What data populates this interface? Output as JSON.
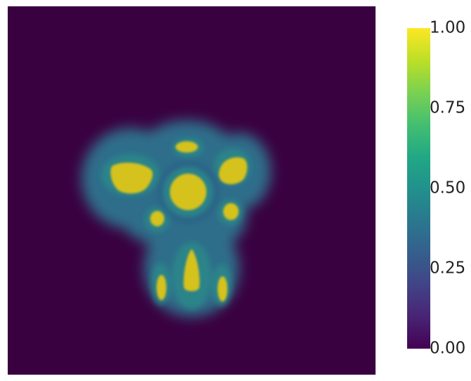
{
  "chart_data": {
    "type": "heatmap",
    "title": "",
    "xlabel": "",
    "ylabel": "",
    "colormap": "viridis",
    "colorbar": {
      "range": [
        0.0,
        1.0
      ],
      "ticks": [
        0.0,
        0.25,
        0.5,
        0.75,
        1.0
      ],
      "tick_labels": [
        "0.00",
        "0.25",
        "0.50",
        "0.75",
        "1.00"
      ]
    },
    "colors": {
      "min": "#440154",
      "low": "#3b528b",
      "mid": "#21918c",
      "high": "#5ec962",
      "max": "#fde725",
      "background": "#3a0140",
      "halo": "#2e6c8a",
      "core": "#d6c21f"
    }
  }
}
